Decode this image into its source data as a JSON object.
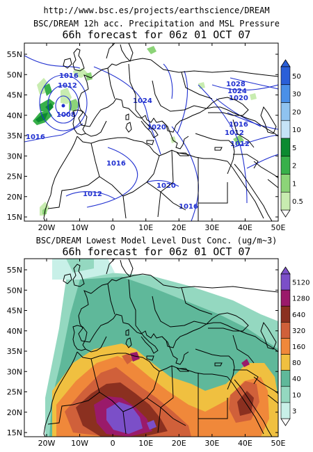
{
  "source_url": "http://www.bsc.es/projects/earthscience/DREAM",
  "panels": [
    {
      "title_line1": "BSC/DREAM 12h acc. Precipitation and MSL Pressure",
      "title_line2": "66h forecast for 06z 01 OCT 07",
      "colorbar": {
        "labels": [
          "50",
          "30",
          "20",
          "10",
          "5",
          "2",
          "1",
          "0.5"
        ],
        "colors": [
          "#2a5fd8",
          "#4a90e8",
          "#8fc3f0",
          "#c5e3f7",
          "#0c8a30",
          "#38b04a",
          "#8cd478",
          "#c8ecb0"
        ]
      },
      "isobars": [
        "1016",
        "1012",
        "1008",
        "1016",
        "1024",
        "1028",
        "1024",
        "1020",
        "1020",
        "1016",
        "1012",
        "1012",
        "1016",
        "1012",
        "1020",
        "1016"
      ]
    },
    {
      "title_line1": "BSC/DREAM Lowest Model Level Dust Conc. (ug/m~3)",
      "title_line2": "66h forecast for 06z 01 OCT 07",
      "colorbar": {
        "labels": [
          "5120",
          "1280",
          "640",
          "320",
          "160",
          "80",
          "40",
          "10",
          "3"
        ],
        "colors": [
          "#7b4fc8",
          "#9a1a6a",
          "#8b3020",
          "#d0603a",
          "#f0883a",
          "#f0c040",
          "#5fb89a",
          "#94d8c0",
          "#c8f0e8"
        ]
      }
    }
  ],
  "axes": {
    "lat_labels": [
      "55N",
      "50N",
      "45N",
      "40N",
      "35N",
      "30N",
      "25N",
      "20N",
      "15N"
    ],
    "lon_labels": [
      "20W",
      "10W",
      "0",
      "10E",
      "20E",
      "30E",
      "40E",
      "50E"
    ]
  }
}
